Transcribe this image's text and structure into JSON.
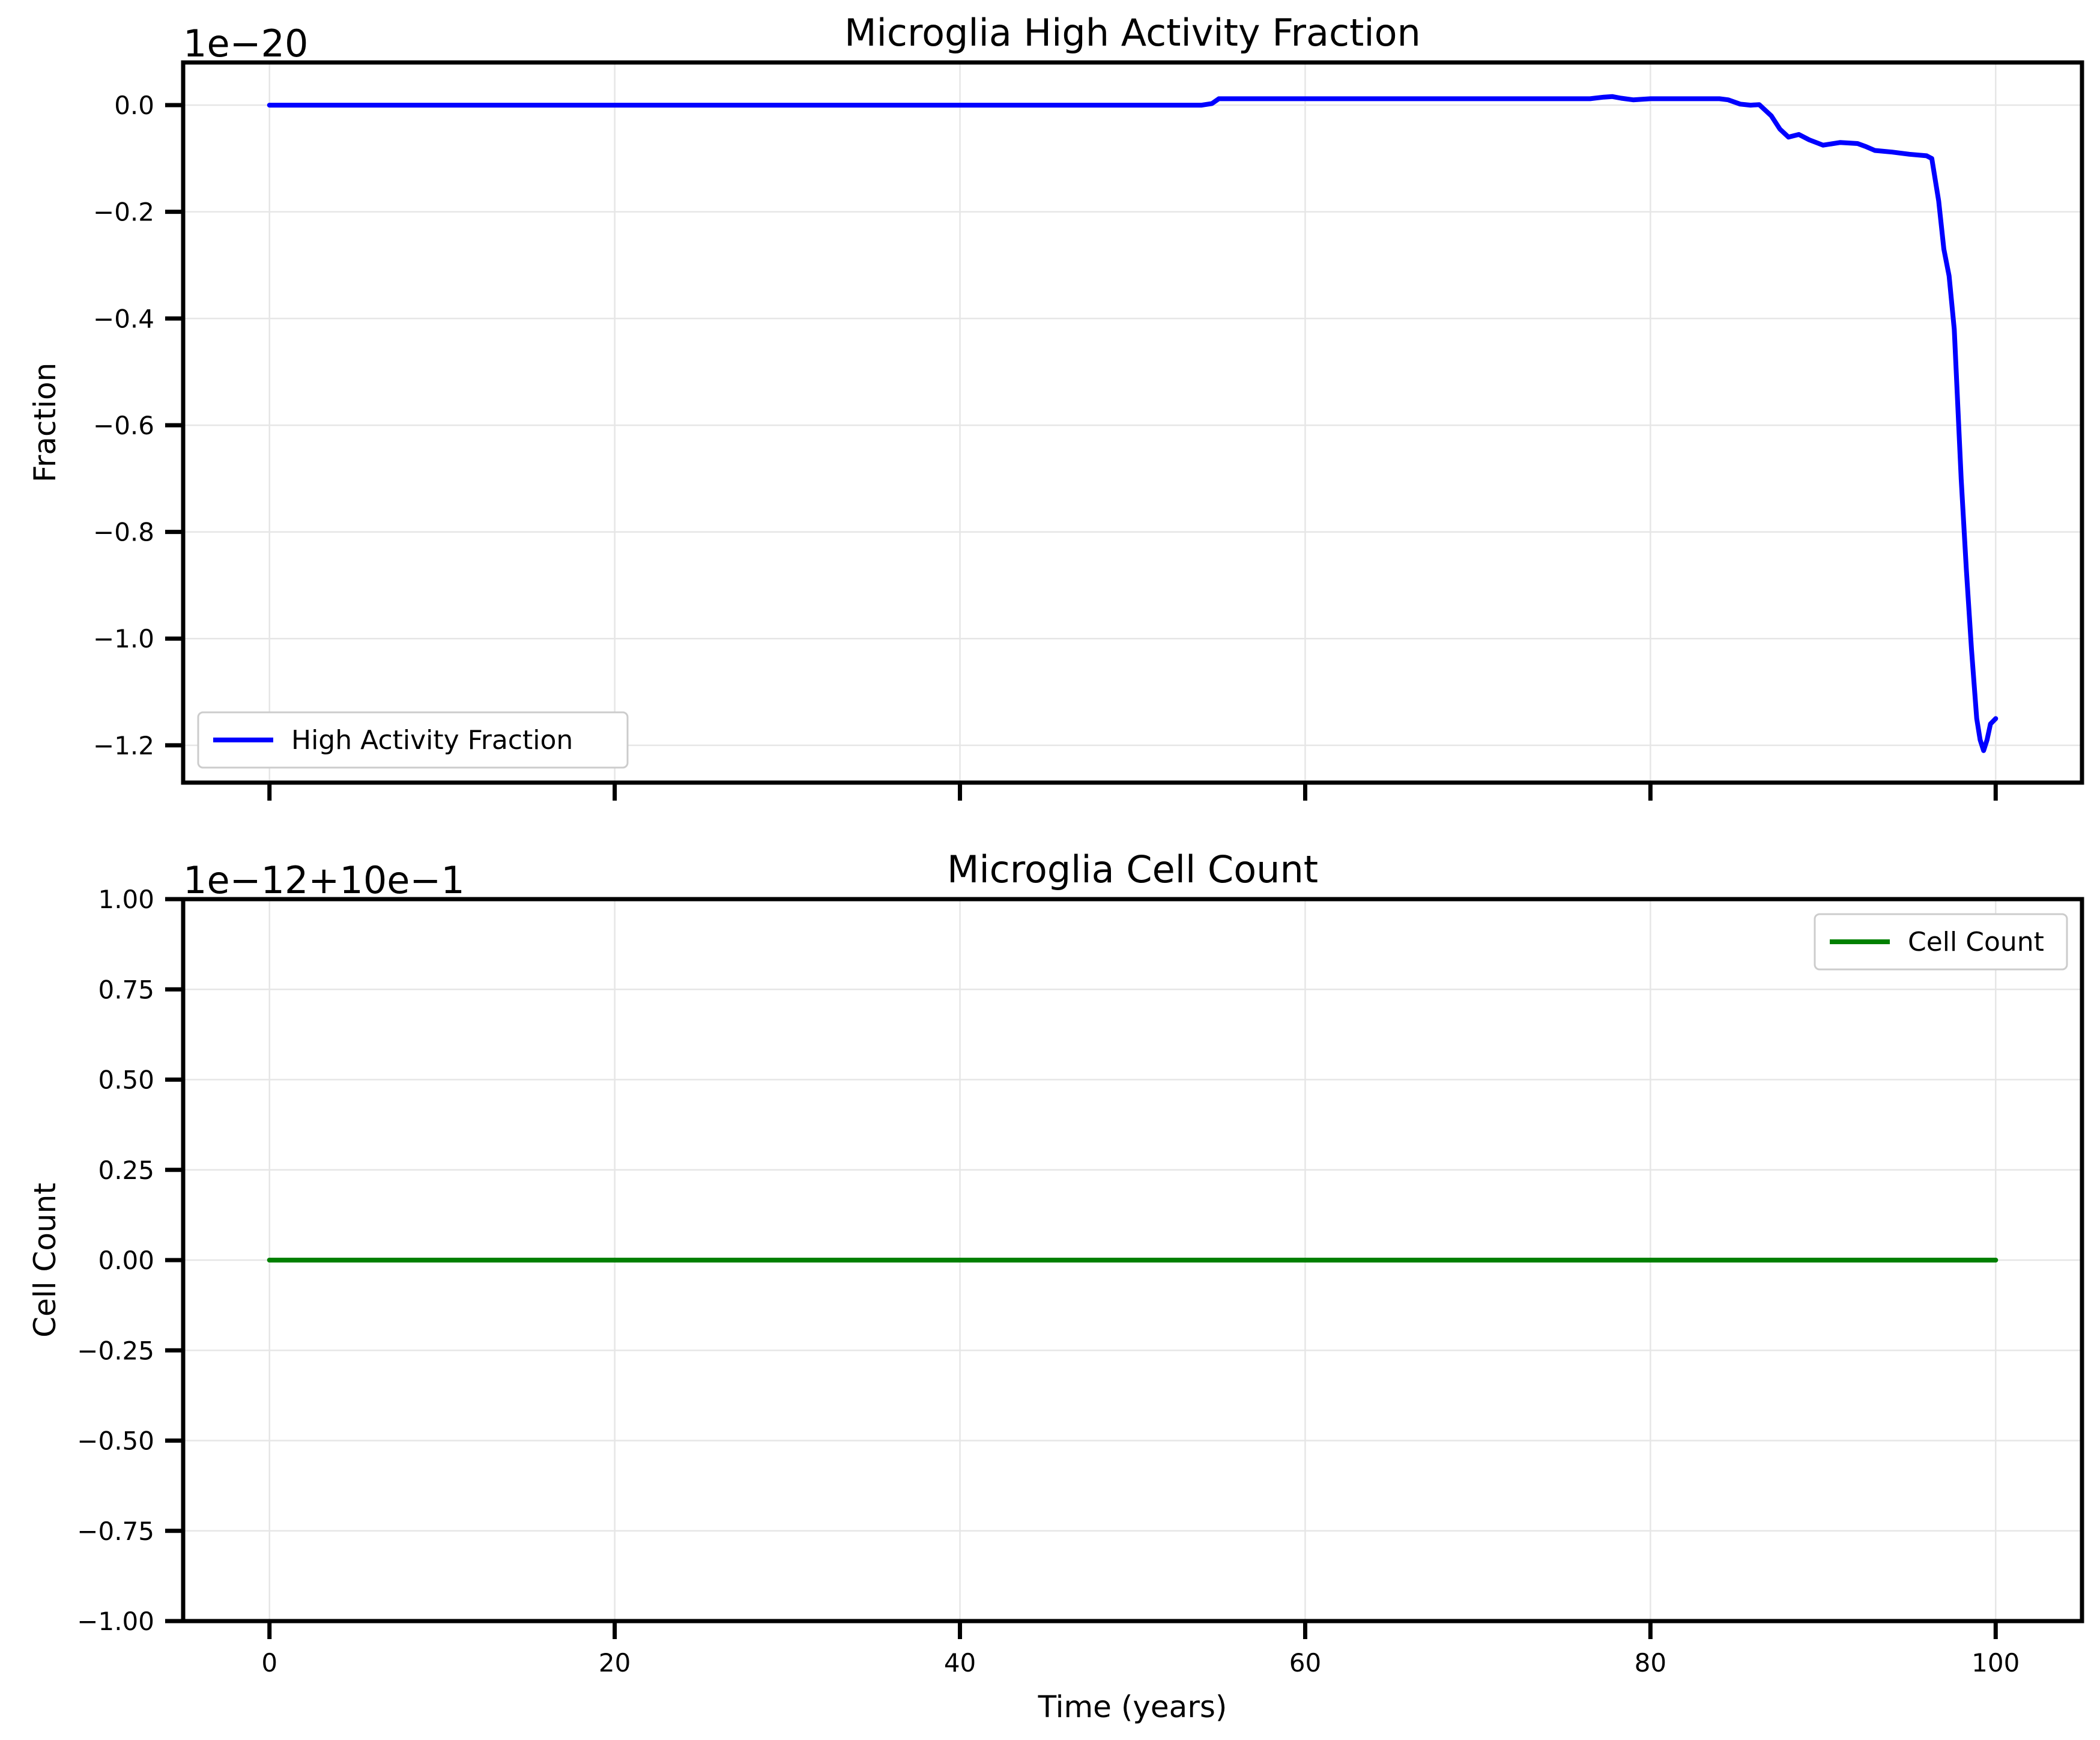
{
  "chart_data": [
    {
      "type": "line",
      "title": "Microglia High Activity Fraction",
      "xlabel": "",
      "ylabel": "Fraction",
      "offset_text": "1e−20",
      "xlim": [
        -5,
        105
      ],
      "ylim": [
        -1.27,
        0.08
      ],
      "x_ticks": [
        0,
        20,
        40,
        60,
        80,
        100
      ],
      "x_tick_labels": [],
      "y_ticks": [
        0.0,
        -0.2,
        -0.4,
        -0.6,
        -0.8,
        -1.0,
        -1.2
      ],
      "y_tick_labels": [
        "0.0",
        "−0.2",
        "−0.4",
        "−0.6",
        "−0.8",
        "−1.0",
        "−1.2"
      ],
      "grid": true,
      "legend_position": "lower-left",
      "series": [
        {
          "name": "High Activity Fraction",
          "color": "#0000ff",
          "x": [
            0,
            10,
            20,
            30,
            40,
            50,
            54,
            54.6,
            55,
            56,
            60,
            65,
            70,
            75,
            76.5,
            77.3,
            77.8,
            78.3,
            79,
            80,
            82,
            84,
            84.5,
            85.2,
            85.8,
            86.3,
            87,
            87.5,
            88,
            88.6,
            89.2,
            90,
            91,
            92,
            92.5,
            93,
            94,
            95,
            96,
            96.3,
            96.7,
            97,
            97.3,
            97.6,
            98,
            98.3,
            98.6,
            98.9,
            99.1,
            99.3,
            99.5,
            99.7,
            100
          ],
          "y": [
            0,
            0,
            0,
            0,
            0,
            0,
            0,
            0.003,
            0.012,
            0.012,
            0.012,
            0.012,
            0.012,
            0.012,
            0.012,
            0.015,
            0.016,
            0.013,
            0.01,
            0.012,
            0.012,
            0.012,
            0.01,
            0.002,
            0.0,
            0.001,
            -0.02,
            -0.045,
            -0.06,
            -0.055,
            -0.065,
            -0.075,
            -0.07,
            -0.072,
            -0.078,
            -0.085,
            -0.088,
            -0.092,
            -0.095,
            -0.1,
            -0.18,
            -0.27,
            -0.32,
            -0.42,
            -0.7,
            -0.87,
            -1.02,
            -1.15,
            -1.19,
            -1.21,
            -1.19,
            -1.16,
            -1.15
          ]
        }
      ]
    },
    {
      "type": "line",
      "title": "Microglia Cell Count",
      "xlabel": "Time (years)",
      "ylabel": "Cell Count",
      "offset_text": "1e−12+10e−1",
      "xlim": [
        -5,
        105
      ],
      "ylim": [
        -1.0,
        1.0
      ],
      "x_ticks": [
        0,
        20,
        40,
        60,
        80,
        100
      ],
      "x_tick_labels": [
        "0",
        "20",
        "40",
        "60",
        "80",
        "100"
      ],
      "y_ticks": [
        1.0,
        0.75,
        0.5,
        0.25,
        0.0,
        -0.25,
        -0.5,
        -0.75,
        -1.0
      ],
      "y_tick_labels": [
        "1.00",
        "0.75",
        "0.50",
        "0.25",
        "0.00",
        "−0.25",
        "−0.50",
        "−0.75",
        "−1.00"
      ],
      "grid": true,
      "legend_position": "upper-right",
      "series": [
        {
          "name": "Cell Count",
          "color": "#008000",
          "x": [
            0,
            10,
            20,
            30,
            40,
            50,
            60,
            70,
            80,
            90,
            100
          ],
          "y": [
            0,
            0,
            0,
            0,
            0,
            0,
            0,
            0,
            0,
            0,
            0
          ]
        }
      ]
    }
  ]
}
